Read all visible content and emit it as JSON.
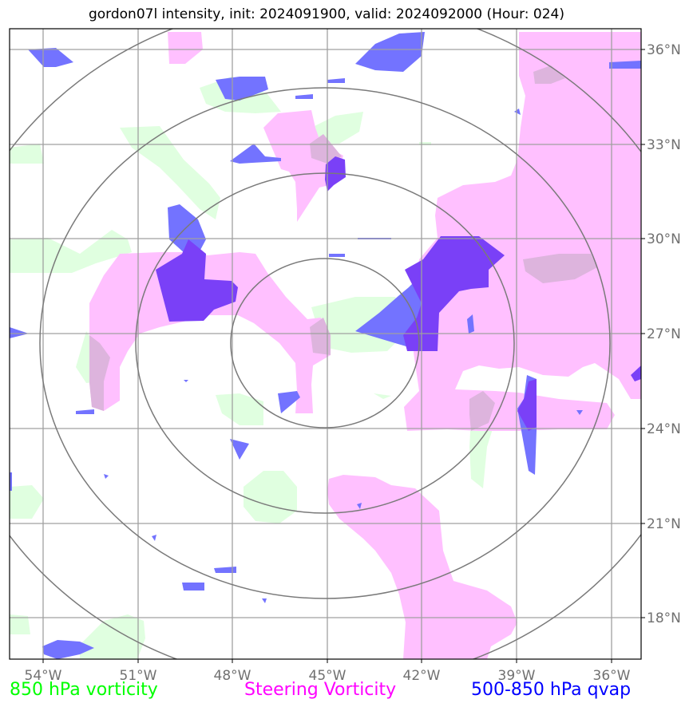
{
  "title": "gordon07l intensity, init: 2024091900, valid: 2024092000 (Hour: 024)",
  "legend": [
    {
      "label": "850 hPa vorticity",
      "color": "#00ff00",
      "fill": "#e0ffe0"
    },
    {
      "label": "Steering Vorticity",
      "color": "#ff00ff",
      "fill": "#ffc0ff"
    },
    {
      "label": "500-850 hPa qvap",
      "color": "#0000ff",
      "fill": "#7070ff"
    }
  ],
  "map": {
    "lon_ticks": [
      "54°W",
      "51°W",
      "48°W",
      "45°W",
      "42°W",
      "39°W",
      "36°W"
    ],
    "lat_ticks": [
      "36°N",
      "33°N",
      "30°N",
      "27°N",
      "24°N",
      "21°N",
      "18°N"
    ],
    "center": {
      "lon": -45,
      "lat": 27
    },
    "range_rings": 4
  },
  "colors": {
    "grid": "#a0a0a0",
    "rings": "#7a7a7a",
    "tick_text": "#707070"
  }
}
